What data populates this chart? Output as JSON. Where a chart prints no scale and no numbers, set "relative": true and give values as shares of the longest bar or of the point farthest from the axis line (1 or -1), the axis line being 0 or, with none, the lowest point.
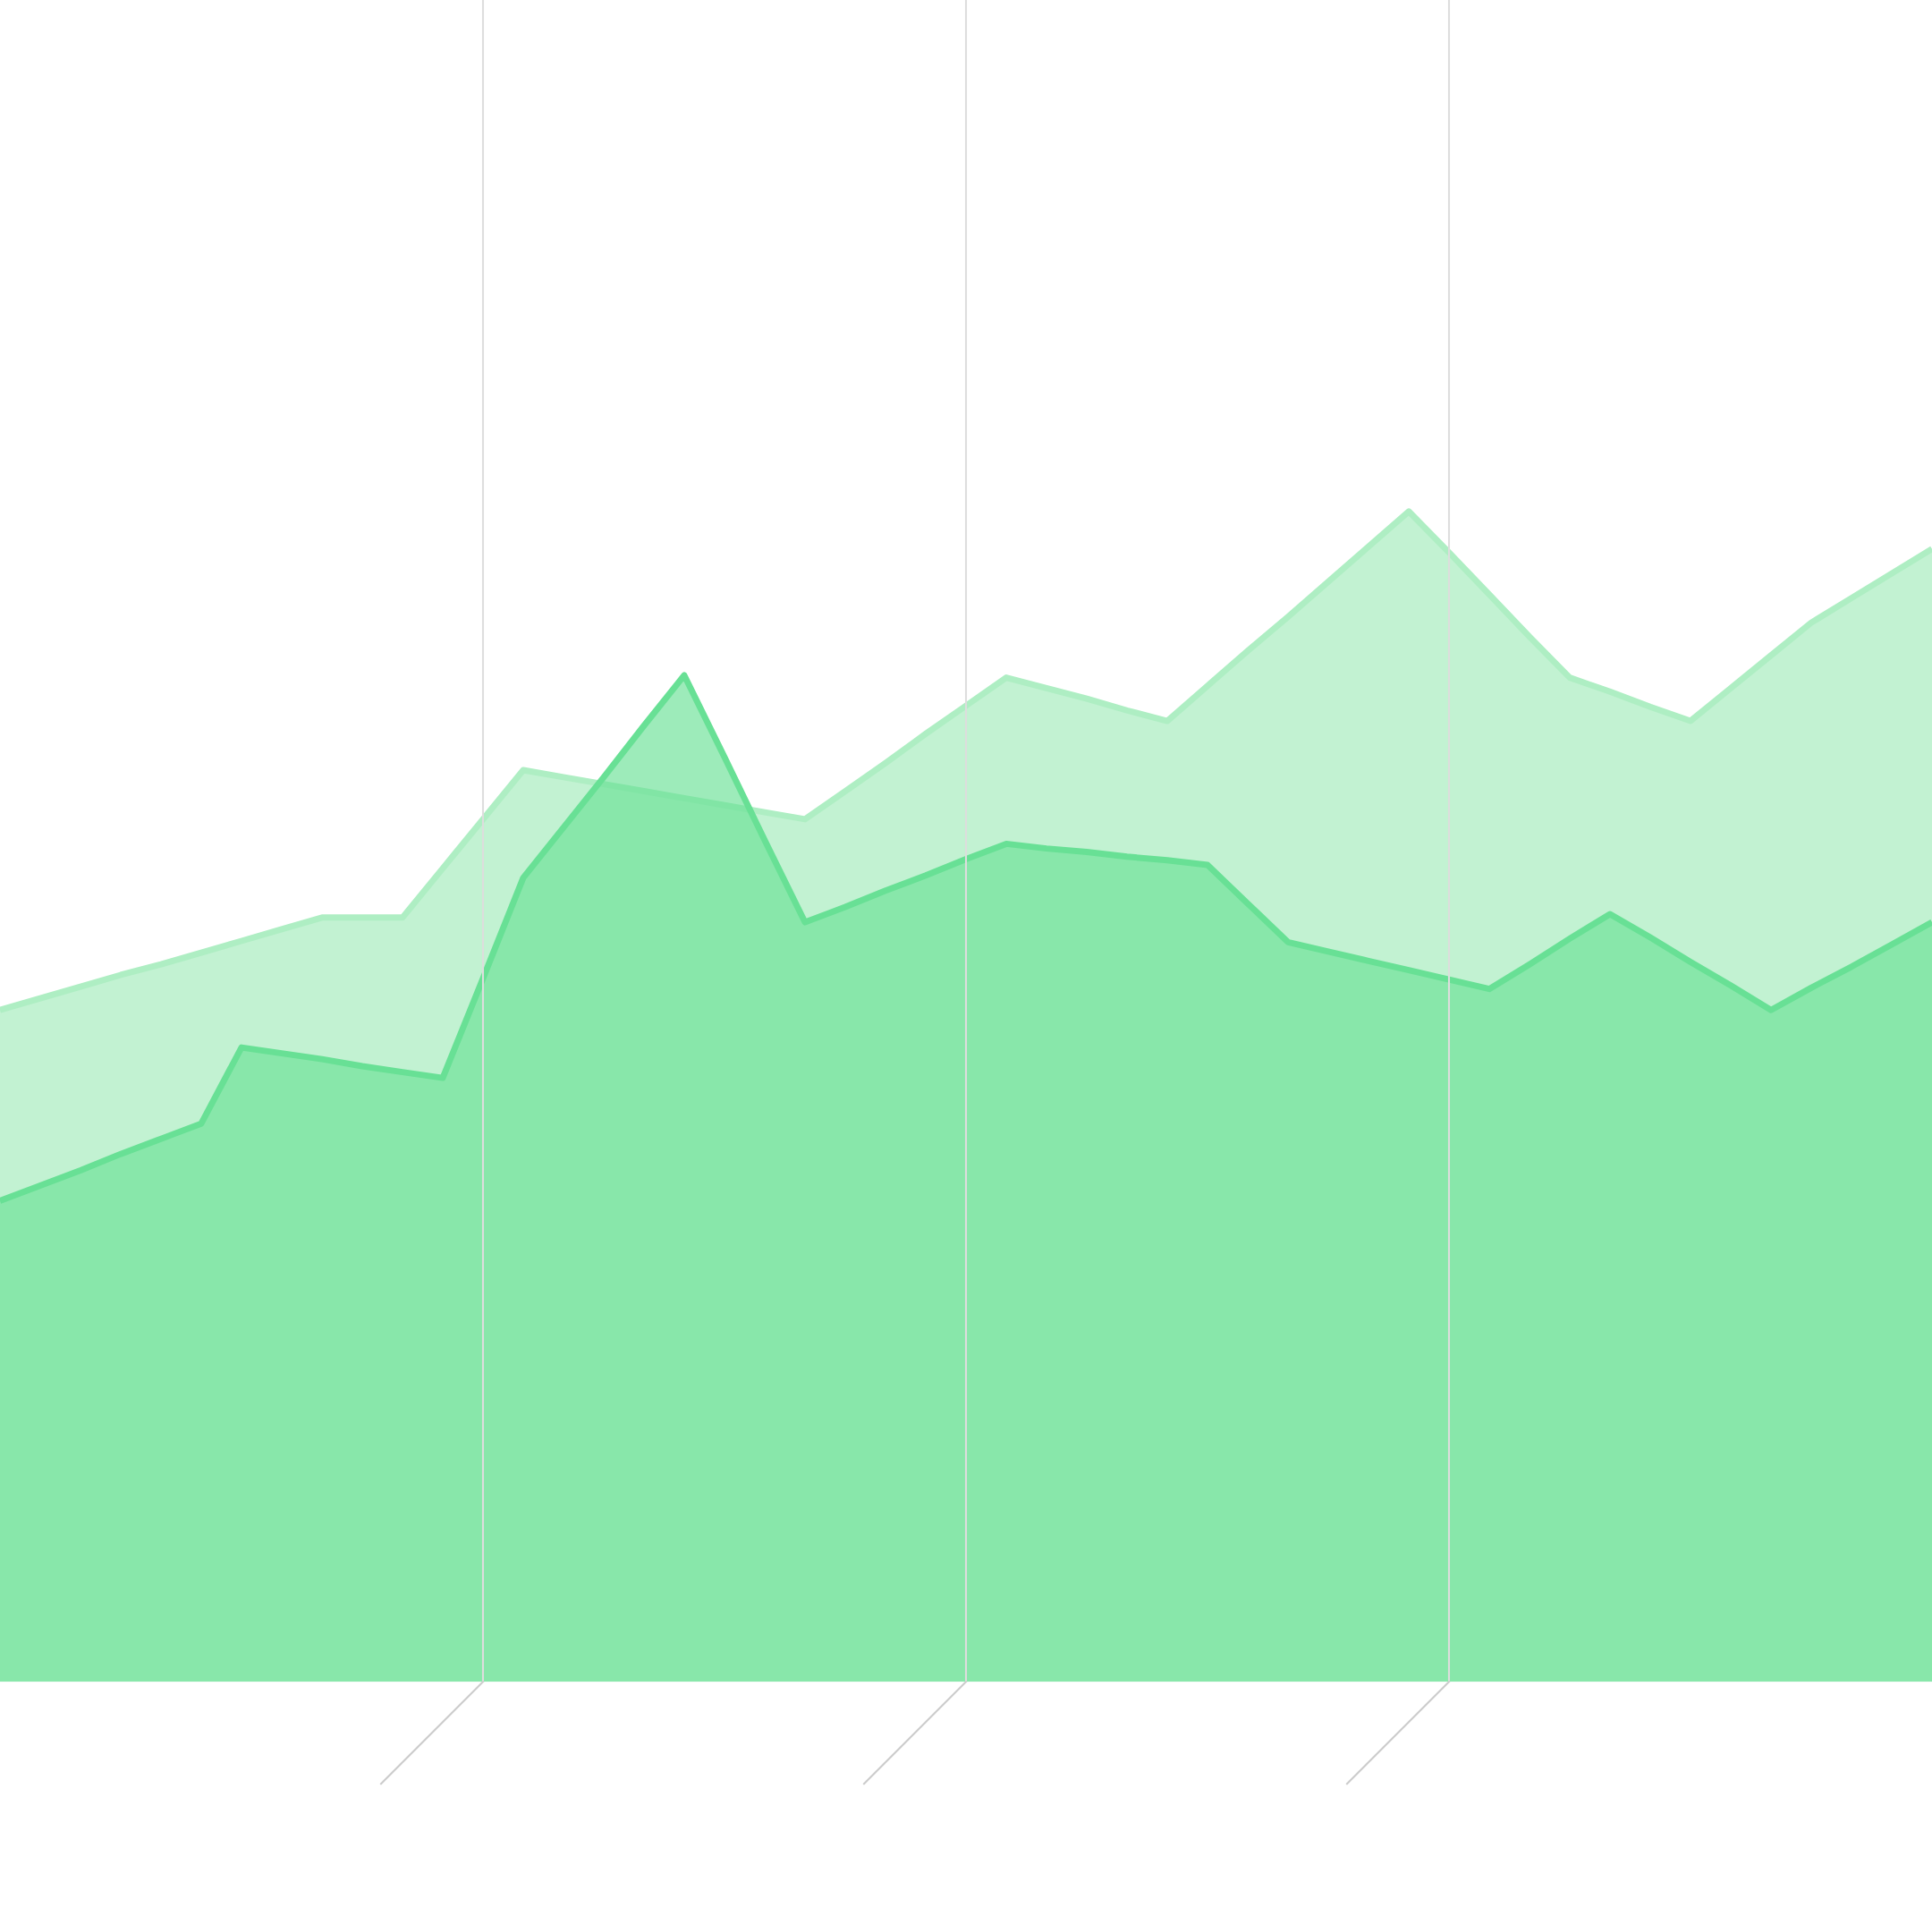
{
  "chart_data": {
    "type": "area",
    "relative": true,
    "grid": "x",
    "categories": [
      null,
      null,
      null,
      null,
      null,
      null,
      null,
      null,
      null,
      null,
      null,
      null,
      null,
      null,
      null,
      null,
      null,
      null,
      null,
      null,
      null,
      null,
      null,
      null,
      null,
      null,
      null,
      null,
      null,
      null,
      null,
      null,
      null,
      null,
      null,
      null,
      null,
      null,
      null,
      null,
      null,
      null,
      null,
      null,
      null,
      null,
      null,
      null,
      null
    ],
    "series": [
      {
        "color": "#aeeec3",
        "values": [
          0.574,
          0.584,
          0.594,
          0.604,
          0.613,
          0.623,
          0.633,
          0.643,
          0.653,
          0.653,
          0.653,
          0.695,
          0.737,
          0.779,
          0.773,
          0.767,
          0.761,
          0.755,
          0.749,
          0.743,
          0.737,
          0.761,
          0.785,
          0.81,
          0.834,
          0.858,
          0.849,
          0.84,
          0.83,
          0.821,
          0.851,
          0.881,
          0.91,
          0.94,
          0.97,
          1.0,
          0.965,
          0.929,
          0.893,
          0.858,
          0.846,
          0.833,
          0.821,
          0.849,
          0.877,
          0.905,
          0.926,
          0.947,
          0.968
        ]
      },
      {
        "color": "#68e095",
        "values": [
          0.411,
          0.424,
          0.437,
          0.451,
          0.464,
          0.477,
          0.542,
          0.537,
          0.532,
          0.526,
          0.521,
          0.516,
          0.601,
          0.687,
          0.73,
          0.773,
          0.817,
          0.86,
          0.79,
          0.719,
          0.649,
          0.662,
          0.676,
          0.689,
          0.703,
          0.716,
          0.712,
          0.709,
          0.705,
          0.702,
          0.698,
          0.665,
          0.632,
          0.624,
          0.616,
          0.608,
          0.6,
          0.592,
          0.613,
          0.635,
          0.656,
          0.636,
          0.615,
          0.595,
          0.574,
          0.593,
          0.611,
          0.63,
          0.649
        ]
      }
    ]
  }
}
